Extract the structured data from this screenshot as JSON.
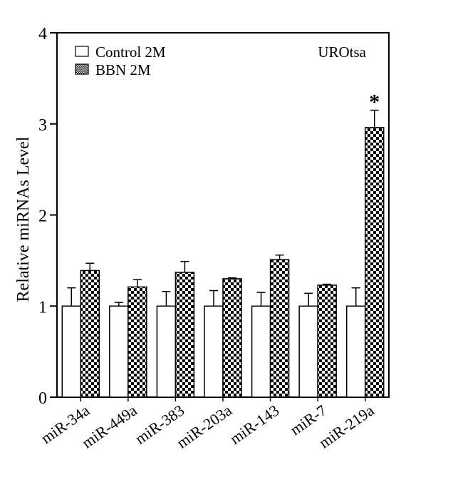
{
  "chart_data": {
    "type": "bar",
    "categories": [
      "miR-34a",
      "miR-449a",
      "miR-383",
      "miR-203a",
      "miR-143",
      "miR-7",
      "miR-219a"
    ],
    "series": [
      {
        "name": "Control 2M",
        "values": [
          1.0,
          1.0,
          1.0,
          1.0,
          1.0,
          1.0,
          1.0
        ],
        "errors": [
          0.2,
          0.04,
          0.16,
          0.17,
          0.15,
          0.14,
          0.2
        ],
        "fill": "white"
      },
      {
        "name": "BBN 2M",
        "values": [
          1.39,
          1.21,
          1.37,
          1.3,
          1.51,
          1.23,
          2.96
        ],
        "errors": [
          0.08,
          0.08,
          0.12,
          0.01,
          0.05,
          0.01,
          0.19
        ],
        "fill": "checker"
      }
    ],
    "ylabel": "Relative miRNAs Level",
    "xlabel": "",
    "ylim": [
      0,
      4
    ],
    "yticks": [
      0,
      1,
      2,
      3,
      4
    ],
    "annotation": "UROtsa",
    "significance": [
      {
        "category": "miR-219a",
        "series": "BBN 2M",
        "symbol": "*"
      }
    ],
    "legend_position": "top-left",
    "grid": false,
    "colors": {
      "bar_stroke": "#000000",
      "control_fill": "#ffffff",
      "checker_dark": "#000000",
      "checker_light": "#ffffff"
    }
  }
}
